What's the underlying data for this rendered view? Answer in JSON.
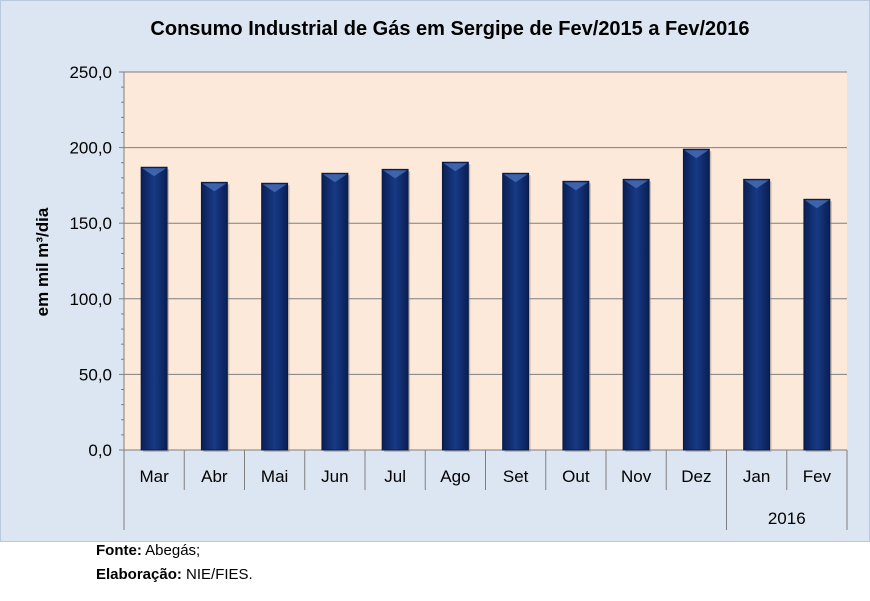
{
  "chart_data": {
    "type": "bar",
    "title": "Consumo Industrial de Gás em Sergipe de Fev/2015 a Fev/2016",
    "ylabel": "em mil m³/dia",
    "xlabel": "",
    "ylim": [
      0,
      250
    ],
    "yticks": [
      "0,0",
      "50,0",
      "100,0",
      "150,0",
      "200,0",
      "250,0"
    ],
    "categories": [
      "Mar",
      "Abr",
      "Mai",
      "Jun",
      "Jul",
      "Ago",
      "Set",
      "Out",
      "Nov",
      "Dez",
      "Jan",
      "Fev"
    ],
    "year_group": {
      "label": "2016",
      "categories": [
        "Jan",
        "Fev"
      ]
    },
    "values": [
      187,
      177,
      176.4,
      183,
      185.6,
      190.3,
      183,
      177.7,
      179,
      198.9,
      179,
      165.8
    ],
    "grid": true,
    "bar_color": "#0f2a6b",
    "plot_bg": "#fde9d9",
    "chart_bg": "#dce6f2"
  },
  "footer": {
    "source_label": "Fonte:",
    "source_value": " Abegás;",
    "elab_label": "Elaboração:",
    "elab_value": " NIE/FIES."
  }
}
